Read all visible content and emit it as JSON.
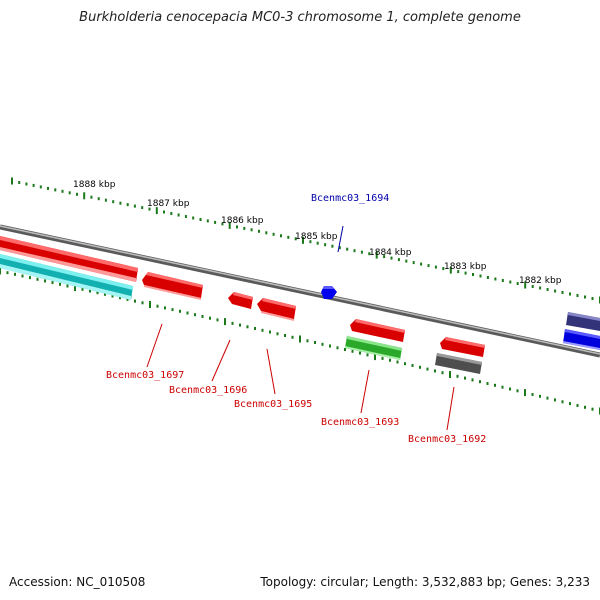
{
  "title": "Burkholderia cenocepacia MC0-3 chromosome 1, complete genome",
  "footer": {
    "accession": "Accession: NC_010508",
    "summary": "Topology: circular; Length: 3,532,883 bp; Genes: 3,233"
  },
  "ruler": {
    "ticks": [
      "1888 kbp",
      "1887 kbp",
      "1886 kbp",
      "1885 kbp",
      "1884 kbp",
      "1883 kbp",
      "1882 kbp"
    ],
    "tick_color": "#1a7a1a"
  },
  "genes": [
    {
      "label": "Bcenmc03_1697",
      "color": "#cc0000"
    },
    {
      "label": "Bcenmc03_1696",
      "color": "#cc0000"
    },
    {
      "label": "Bcenmc03_1695",
      "color": "#cc0000"
    },
    {
      "label": "Bcenmc03_1694",
      "color": "#0000aa"
    },
    {
      "label": "Bcenmc03_1693",
      "color": "#cc0000"
    },
    {
      "label": "Bcenmc03_1692",
      "color": "#cc0000"
    }
  ],
  "colors": {
    "forward_gene": "#e00000",
    "cds_teal": "#18c8c8",
    "cds_green": "#33bb33",
    "cds_gray": "#555555",
    "cds_blue": "#0000ee",
    "cds_navy": "#3a3a8a",
    "backbone": "#888888"
  }
}
